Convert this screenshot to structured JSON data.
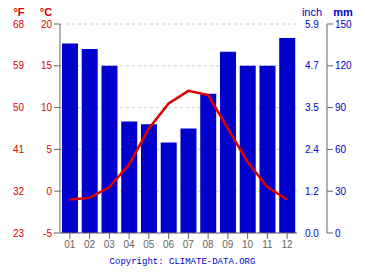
{
  "chart_data": {
    "type": "bar",
    "categories": [
      "01",
      "02",
      "03",
      "04",
      "05",
      "06",
      "07",
      "08",
      "09",
      "10",
      "11",
      "12"
    ],
    "series": [
      {
        "type": "bar",
        "color": "#0000cc",
        "axis": "y2",
        "values": [
          136,
          132,
          120,
          80,
          78,
          65,
          75,
          100,
          130,
          120,
          120,
          140
        ]
      },
      {
        "type": "line",
        "color": "#dd0000",
        "values": [
          -1.0,
          -0.8,
          0.5,
          3.2,
          7.5,
          10.5,
          12.0,
          11.5,
          7.5,
          3.5,
          0.5,
          -1.0
        ]
      }
    ],
    "ylim": [
      -5,
      20
    ],
    "yticks": [
      -5,
      0,
      5,
      10,
      15,
      20
    ],
    "ylabel": "°C",
    "yticks_f": [
      {
        "value": -5,
        "label": "23"
      },
      {
        "value": 0,
        "label": "32"
      },
      {
        "value": 5,
        "label": "41"
      },
      {
        "value": 10,
        "label": "50"
      },
      {
        "value": 15,
        "label": "59"
      },
      {
        "value": 20,
        "label": "68"
      }
    ],
    "ylabel_f": "°F",
    "y2lim": [
      0,
      150
    ],
    "y2ticks": [
      0,
      30,
      60,
      90,
      120,
      150
    ],
    "y2label": "mm",
    "y2ticks_inch": [
      {
        "value": 0,
        "label": "0.0"
      },
      {
        "value": 30,
        "label": "1.2"
      },
      {
        "value": 60,
        "label": "2.4"
      },
      {
        "value": 90,
        "label": "3.5"
      },
      {
        "value": 120,
        "label": "4.7"
      },
      {
        "value": 150,
        "label": "5.9"
      }
    ],
    "y2label_inch": "inch",
    "grid": true,
    "annotation": "Copyright: CLIMATE-DATA.ORG"
  }
}
